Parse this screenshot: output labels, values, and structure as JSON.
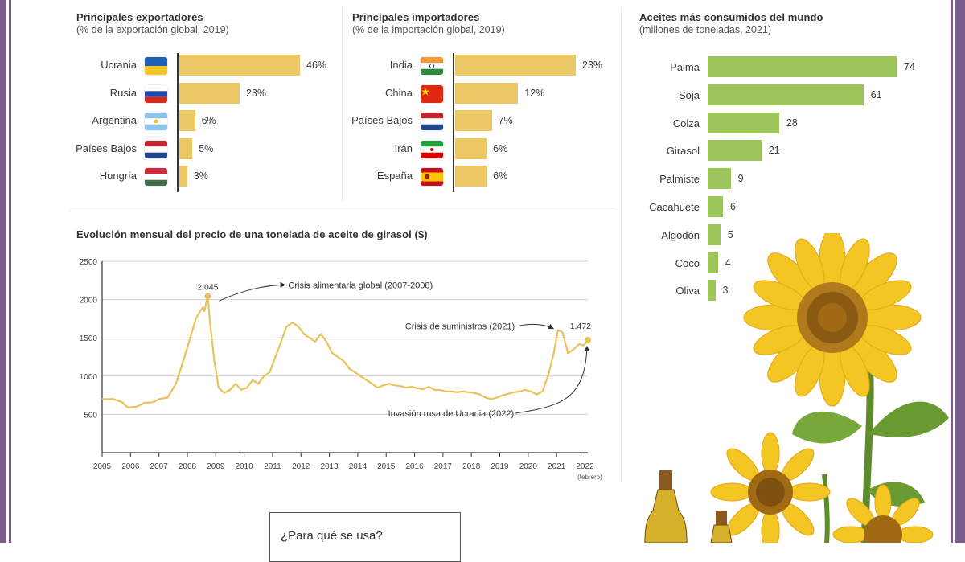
{
  "exporters": {
    "title": "Principales exportadores",
    "subtitle": "(% de la exportación global, 2019)",
    "rows": [
      {
        "country": "Ucrania",
        "value": 46,
        "label": "46%",
        "flag": "ukraine-flag"
      },
      {
        "country": "Rusia",
        "value": 23,
        "label": "23%",
        "flag": "russia-flag"
      },
      {
        "country": "Argentina",
        "value": 6,
        "label": "6%",
        "flag": "argentina-flag"
      },
      {
        "country": "Países Bajos",
        "value": 5,
        "label": "5%",
        "flag": "netherlands-flag"
      },
      {
        "country": "Hungría",
        "value": 3,
        "label": "3%",
        "flag": "hungary-flag"
      }
    ]
  },
  "importers": {
    "title": "Principales importadores",
    "subtitle": "(% de la importación global, 2019)",
    "rows": [
      {
        "country": "India",
        "value": 23,
        "label": "23%",
        "flag": "india-flag"
      },
      {
        "country": "China",
        "value": 12,
        "label": "12%",
        "flag": "china-flag"
      },
      {
        "country": "Países Bajos",
        "value": 7,
        "label": "7%",
        "flag": "netherlands-flag"
      },
      {
        "country": "Irán",
        "value": 6,
        "label": "6%",
        "flag": "iran-flag"
      },
      {
        "country": "España",
        "value": 6,
        "label": "6%",
        "flag": "spain-flag"
      }
    ]
  },
  "oils": {
    "title": "Aceites más consumidos del mundo",
    "subtitle": "(millones de toneladas, 2021)",
    "rows": [
      {
        "name": "Palma",
        "value": 74
      },
      {
        "name": "Soja",
        "value": 61
      },
      {
        "name": "Colza",
        "value": 28
      },
      {
        "name": "Girasol",
        "value": 21
      },
      {
        "name": "Palmiste",
        "value": 9
      },
      {
        "name": "Cacahuete",
        "value": 6
      },
      {
        "name": "Algodón",
        "value": 5
      },
      {
        "name": "Coco",
        "value": 4
      },
      {
        "name": "Oliva",
        "value": 3
      }
    ]
  },
  "price": {
    "title": "Evolución mensual del precio de una tonelada de aceite de girasol ($)",
    "y_ticks": [
      "2500",
      "2000",
      "1500",
      "1000",
      "500"
    ],
    "x_ticks": [
      "2005",
      "2006",
      "2007",
      "2008",
      "2009",
      "2010",
      "2011",
      "2012",
      "2013",
      "2014",
      "2015",
      "2016",
      "2017",
      "2018",
      "2019",
      "2020",
      "2021",
      "2022"
    ],
    "x_note": "(febrero)",
    "peak_label": "2.045",
    "last_label": "1.472",
    "annotation_crisis_food": "Crisis alimentaria global (2007-2008)",
    "annotation_supply": "Crisis de suministros (2021)",
    "annotation_invasion": "Invasión rusa de Ucrania (2022)"
  },
  "chart_data": [
    {
      "type": "bar",
      "title": "Principales exportadores",
      "subtitle": "(% de la exportación global, 2019)",
      "categories": [
        "Ucrania",
        "Rusia",
        "Argentina",
        "Países Bajos",
        "Hungría"
      ],
      "values": [
        46,
        23,
        6,
        5,
        3
      ]
    },
    {
      "type": "bar",
      "title": "Principales importadores",
      "subtitle": "(% de la importación global, 2019)",
      "categories": [
        "India",
        "China",
        "Países Bajos",
        "Irán",
        "España"
      ],
      "values": [
        23,
        12,
        7,
        6,
        6
      ]
    },
    {
      "type": "bar",
      "title": "Aceites más consumidos del mundo",
      "subtitle": "(millones de toneladas, 2021)",
      "categories": [
        "Palma",
        "Soja",
        "Colza",
        "Girasol",
        "Palmiste",
        "Cacahuete",
        "Algodón",
        "Coco",
        "Oliva"
      ],
      "values": [
        74,
        61,
        28,
        21,
        9,
        6,
        5,
        4,
        3
      ]
    },
    {
      "type": "line",
      "title": "Evolución mensual del precio de una tonelada de aceite de girasol ($)",
      "xlim": [
        2005,
        2022.1
      ],
      "ylim": [
        0,
        2500
      ],
      "grid": true,
      "series": [
        {
          "color": "#e8c25a",
          "points": [
            [
              2005.0,
              700
            ],
            [
              2005.4,
              700
            ],
            [
              2005.7,
              660
            ],
            [
              2005.9,
              590
            ],
            [
              2006.2,
              600
            ],
            [
              2006.5,
              650
            ],
            [
              2006.8,
              660
            ],
            [
              2007.0,
              700
            ],
            [
              2007.3,
              720
            ],
            [
              2007.6,
              900
            ],
            [
              2007.9,
              1250
            ],
            [
              2008.1,
              1500
            ],
            [
              2008.3,
              1750
            ],
            [
              2008.45,
              1850
            ],
            [
              2008.55,
              1900
            ],
            [
              2008.6,
              1850
            ],
            [
              2008.72,
              2045
            ],
            [
              2008.8,
              1700
            ],
            [
              2008.95,
              1200
            ],
            [
              2009.1,
              850
            ],
            [
              2009.3,
              780
            ],
            [
              2009.5,
              820
            ],
            [
              2009.7,
              900
            ],
            [
              2009.9,
              820
            ],
            [
              2010.1,
              850
            ],
            [
              2010.3,
              950
            ],
            [
              2010.5,
              900
            ],
            [
              2010.7,
              1000
            ],
            [
              2010.9,
              1050
            ],
            [
              2011.1,
              1250
            ],
            [
              2011.3,
              1450
            ],
            [
              2011.5,
              1650
            ],
            [
              2011.7,
              1700
            ],
            [
              2011.9,
              1650
            ],
            [
              2012.1,
              1550
            ],
            [
              2012.3,
              1500
            ],
            [
              2012.5,
              1450
            ],
            [
              2012.7,
              1550
            ],
            [
              2012.9,
              1450
            ],
            [
              2013.1,
              1300
            ],
            [
              2013.3,
              1250
            ],
            [
              2013.5,
              1200
            ],
            [
              2013.7,
              1100
            ],
            [
              2013.9,
              1050
            ],
            [
              2014.1,
              1000
            ],
            [
              2014.3,
              950
            ],
            [
              2014.5,
              900
            ],
            [
              2014.7,
              850
            ],
            [
              2014.9,
              880
            ],
            [
              2015.1,
              900
            ],
            [
              2015.3,
              880
            ],
            [
              2015.5,
              870
            ],
            [
              2015.7,
              850
            ],
            [
              2015.9,
              860
            ],
            [
              2016.1,
              840
            ],
            [
              2016.3,
              830
            ],
            [
              2016.5,
              860
            ],
            [
              2016.7,
              820
            ],
            [
              2016.9,
              820
            ],
            [
              2017.1,
              800
            ],
            [
              2017.3,
              800
            ],
            [
              2017.5,
              790
            ],
            [
              2017.7,
              800
            ],
            [
              2017.9,
              790
            ],
            [
              2018.1,
              780
            ],
            [
              2018.3,
              760
            ],
            [
              2018.5,
              720
            ],
            [
              2018.7,
              700
            ],
            [
              2018.9,
              720
            ],
            [
              2019.1,
              750
            ],
            [
              2019.3,
              770
            ],
            [
              2019.5,
              790
            ],
            [
              2019.7,
              800
            ],
            [
              2019.9,
              820
            ],
            [
              2020.1,
              800
            ],
            [
              2020.3,
              760
            ],
            [
              2020.5,
              800
            ],
            [
              2020.7,
              1000
            ],
            [
              2020.9,
              1300
            ],
            [
              2021.05,
              1600
            ],
            [
              2021.2,
              1580
            ],
            [
              2021.4,
              1300
            ],
            [
              2021.6,
              1350
            ],
            [
              2021.8,
              1420
            ],
            [
              2021.95,
              1400
            ],
            [
              2022.1,
              1472
            ]
          ]
        }
      ],
      "annotations": [
        {
          "label": "2.045",
          "x": 2008.72,
          "y": 2045
        },
        {
          "label": "1.472",
          "x": 2022.1,
          "y": 1472
        }
      ]
    }
  ]
}
